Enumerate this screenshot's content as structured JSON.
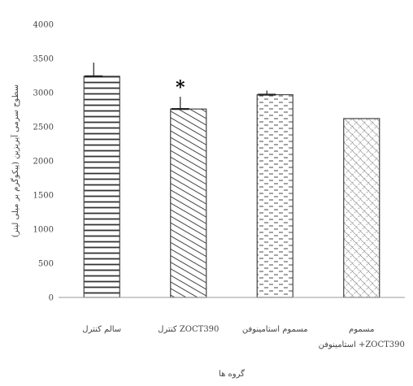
{
  "chart_data": {
    "type": "bar",
    "title": "",
    "xlabel": "گروه ها",
    "ylabel": "سطوح سرمی آیریزین (پیکوگرم بر میلی لیتر)",
    "ylim": [
      0,
      4000
    ],
    "yticks": [
      0,
      500,
      1000,
      1500,
      2000,
      2500,
      3000,
      3500,
      4000
    ],
    "ytick_labels": [
      "0",
      "500",
      "1000",
      "1500",
      "2000",
      "2500",
      "3000",
      "3500",
      "4000"
    ],
    "categories": [
      [
        "سالم کنترل"
      ],
      [
        "کنترل ZOCT390"
      ],
      [
        "مسموم استامینوفن"
      ],
      [
        "مسموم",
        "استامینوفن +ZOCT390"
      ]
    ],
    "values": [
      3240,
      2760,
      2970,
      2620
    ],
    "error_bars": [
      200,
      180,
      60,
      0
    ],
    "patterns": [
      "horizontal-lines",
      "diagonal-lines",
      "dashes",
      "crosshatch"
    ],
    "annotations": [
      {
        "category_index": 1,
        "text": "*"
      }
    ],
    "grid": false,
    "legend": "none",
    "colors": {
      "bar_border": "#444444",
      "pattern_stroke": "#555555",
      "axis": "#999999",
      "error_bar": "#222222"
    }
  }
}
